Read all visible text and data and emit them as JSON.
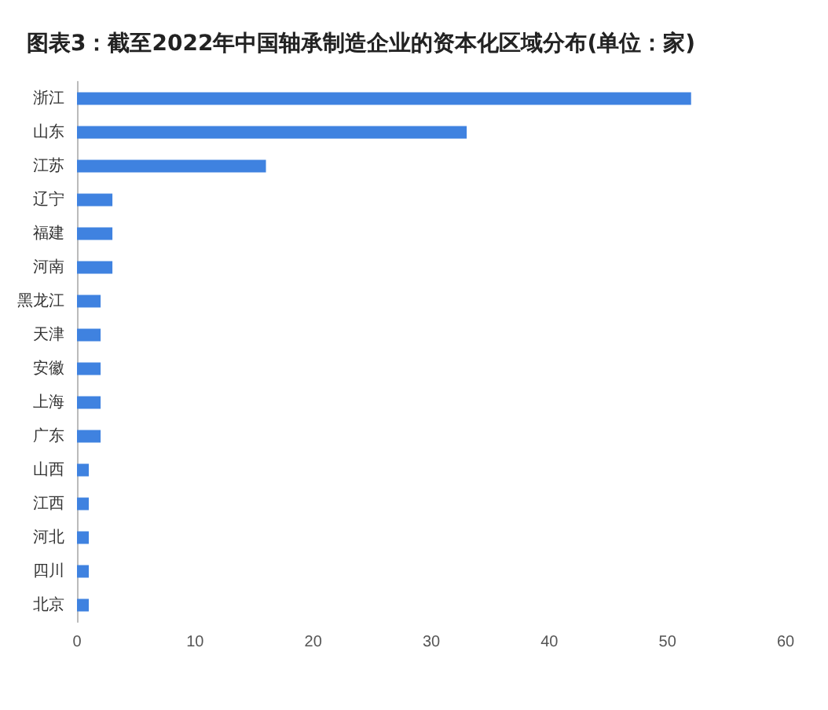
{
  "chart_data": {
    "type": "bar",
    "orientation": "horizontal",
    "title": "图表3：截至2022年中国轴承制造企业的资本化区域分布(单位：家)",
    "categories": [
      "浙江",
      "山东",
      "江苏",
      "辽宁",
      "福建",
      "河南",
      "黑龙江",
      "天津",
      "安徽",
      "上海",
      "广东",
      "山西",
      "江西",
      "河北",
      "四川",
      "北京"
    ],
    "values": [
      52,
      33,
      16,
      3,
      3,
      3,
      2,
      2,
      2,
      2,
      2,
      1,
      1,
      1,
      1,
      1
    ],
    "color": "#3f82e0",
    "xlim": [
      0,
      60
    ],
    "xticks": [
      0,
      10,
      20,
      30,
      40,
      50,
      60
    ],
    "grid": false
  }
}
